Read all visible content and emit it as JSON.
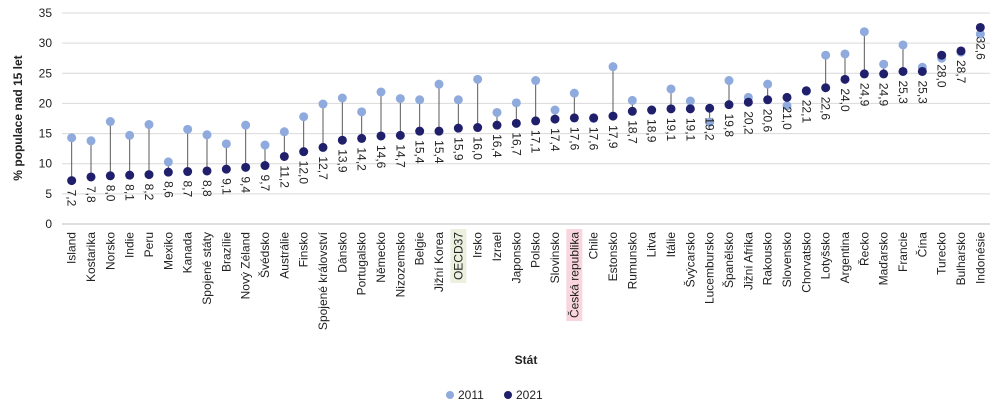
{
  "chart_data": {
    "type": "dumbbell",
    "y_label": "% populace nad 15 let",
    "x_label": "Stát",
    "ylim": [
      0,
      35
    ],
    "yticks": [
      0,
      5,
      10,
      15,
      20,
      25,
      30,
      35
    ],
    "grid": true,
    "legend": "bottom",
    "categories": [
      "Island",
      "Kostarika",
      "Norsko",
      "Indie",
      "Peru",
      "Mexiko",
      "Kanada",
      "Spojené státy",
      "Brazílie",
      "Nový Zéland",
      "Švédsko",
      "Austrálie",
      "Finsko",
      "Spojené království",
      "Dánsko",
      "Portugalsko",
      "Německo",
      "Nizozemsko",
      "Belgie",
      "Jižní Korea",
      "OECD37",
      "Irsko",
      "Izrael",
      "Japonsko",
      "Polsko",
      "Slovinsko",
      "Česká republika",
      "Chile",
      "Estonsko",
      "Rumunsko",
      "Litva",
      "Itálie",
      "Švýcarsko",
      "Lucembursko",
      "Španělsko",
      "Jižní Afrika",
      "Rakousko",
      "Slovensko",
      "Chorvatsko",
      "Lotyšsko",
      "Argentina",
      "Řecko",
      "Maďarsko",
      "Francie",
      "Čína",
      "Turecko",
      "Bulharsko",
      "Indonésie"
    ],
    "category_highlights": [
      null,
      null,
      null,
      null,
      null,
      null,
      null,
      null,
      null,
      null,
      null,
      null,
      null,
      null,
      null,
      null,
      null,
      null,
      null,
      null,
      "#ebf1de",
      null,
      null,
      null,
      null,
      null,
      "#f9d6de",
      null,
      null,
      null,
      null,
      null,
      null,
      null,
      null,
      null,
      null,
      null,
      null,
      null,
      null,
      null,
      null,
      null,
      null,
      null,
      null,
      null
    ],
    "series": [
      {
        "name": "2011",
        "color": "#8faadc",
        "values": [
          14.3,
          13.8,
          17.0,
          14.7,
          16.5,
          10.3,
          15.7,
          14.8,
          13.3,
          16.4,
          13.1,
          15.3,
          17.8,
          19.9,
          20.9,
          18.6,
          21.9,
          20.8,
          20.6,
          23.2,
          20.6,
          24.0,
          18.5,
          20.1,
          23.8,
          18.9,
          21.7,
          17.5,
          26.1,
          20.5,
          18.9,
          22.4,
          20.4,
          16.9,
          23.8,
          21.0,
          23.2,
          19.6,
          22.0,
          28.0,
          28.2,
          31.9,
          26.5,
          29.7,
          26.0,
          27.5,
          28.5,
          31.5
        ]
      },
      {
        "name": "2021",
        "color": "#1f1f6b",
        "values": [
          7.2,
          7.8,
          8.0,
          8.1,
          8.2,
          8.6,
          8.7,
          8.8,
          9.1,
          9.4,
          9.7,
          11.2,
          12.0,
          12.7,
          13.9,
          14.2,
          14.6,
          14.7,
          15.4,
          15.4,
          15.9,
          16.0,
          16.4,
          16.7,
          17.1,
          17.4,
          17.6,
          17.6,
          17.9,
          18.7,
          18.9,
          19.1,
          19.1,
          19.2,
          19.8,
          20.2,
          20.6,
          21.0,
          22.1,
          22.6,
          24.0,
          24.9,
          24.9,
          25.3,
          25.3,
          28.0,
          28.7,
          32.6
        ],
        "value_labels": [
          "7,2",
          "7,8",
          "8,0",
          "8,1",
          "8,2",
          "8,6",
          "8,7",
          "8,8",
          "9,1",
          "9,4",
          "9,7",
          "11,2",
          "12,0",
          "12,7",
          "13,9",
          "14,2",
          "14,6",
          "14,7",
          "15,4",
          "15,4",
          "15,9",
          "16,0",
          "16,4",
          "16,7",
          "17,1",
          "17,4",
          "17,6",
          "17,6",
          "17,9",
          "18,7",
          "18,9",
          "19,1",
          "19,1",
          "19,2",
          "19,8",
          "20,2",
          "20,6",
          "21,0",
          "22,1",
          "22,6",
          "24,0",
          "24,9",
          "24,9",
          "25,3",
          "25,3",
          "28,0",
          "28,7",
          "32,6"
        ]
      }
    ]
  }
}
